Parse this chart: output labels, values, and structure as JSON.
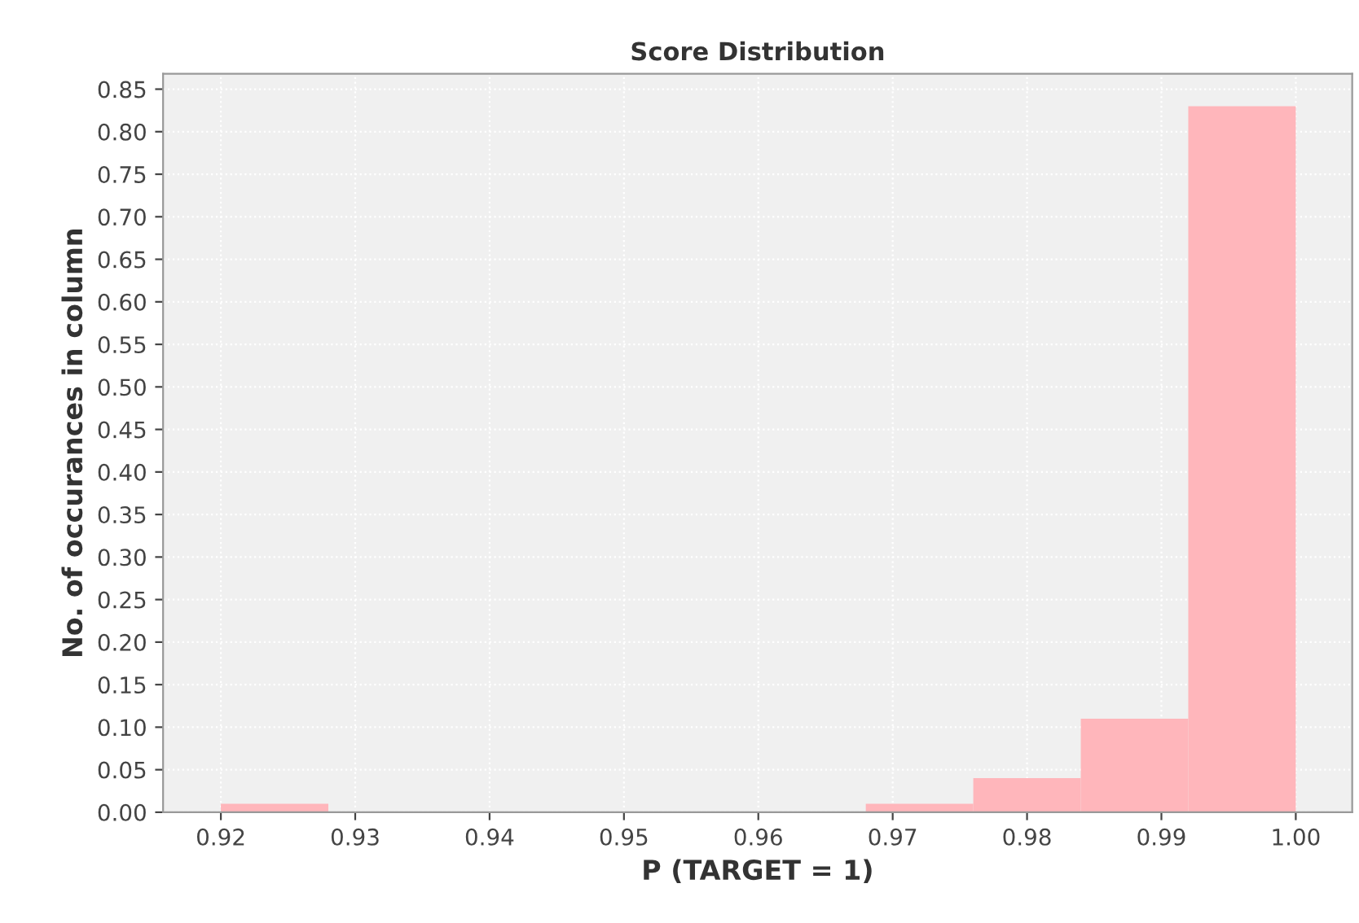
{
  "chart_data": {
    "type": "histogram",
    "title": "Score Distribution",
    "xlabel": "P (TARGET = 1)",
    "ylabel": "No. of occurances in column",
    "bins": [
      0.92,
      0.928,
      0.936,
      0.944,
      0.952,
      0.96,
      0.968,
      0.976,
      0.984,
      0.992,
      1.0
    ],
    "values": [
      0.01,
      0,
      0,
      0,
      0,
      0,
      0.01,
      0.04,
      0.11,
      0.83
    ],
    "color": "#ffb6bb",
    "xlim": [
      0.9157,
      1.0042
    ],
    "xticks": [
      {
        "value": 0.92,
        "label": "0.92"
      },
      {
        "value": 0.93,
        "label": "0.93"
      },
      {
        "value": 0.94,
        "label": "0.94"
      },
      {
        "value": 0.95,
        "label": "0.95"
      },
      {
        "value": 0.96,
        "label": "0.96"
      },
      {
        "value": 0.97,
        "label": "0.97"
      },
      {
        "value": 0.98,
        "label": "0.98"
      },
      {
        "value": 0.99,
        "label": "0.99"
      },
      {
        "value": 1.0,
        "label": "1.00"
      }
    ],
    "ylim": [
      0,
      0.868
    ],
    "yticks": [
      {
        "value": 0,
        "label": "0.00"
      },
      {
        "value": 0.05,
        "label": "0.05"
      },
      {
        "value": 0.1,
        "label": "0.10"
      },
      {
        "value": 0.15,
        "label": "0.15"
      },
      {
        "value": 0.2,
        "label": "0.20"
      },
      {
        "value": 0.25,
        "label": "0.25"
      },
      {
        "value": 0.3,
        "label": "0.30"
      },
      {
        "value": 0.35,
        "label": "0.35"
      },
      {
        "value": 0.4,
        "label": "0.40"
      },
      {
        "value": 0.45,
        "label": "0.45"
      },
      {
        "value": 0.5,
        "label": "0.50"
      },
      {
        "value": 0.55,
        "label": "0.55"
      },
      {
        "value": 0.6,
        "label": "0.60"
      },
      {
        "value": 0.65,
        "label": "0.65"
      },
      {
        "value": 0.7,
        "label": "0.70"
      },
      {
        "value": 0.75,
        "label": "0.75"
      },
      {
        "value": 0.8,
        "label": "0.80"
      },
      {
        "value": 0.85,
        "label": "0.85"
      }
    ],
    "grid": true
  }
}
